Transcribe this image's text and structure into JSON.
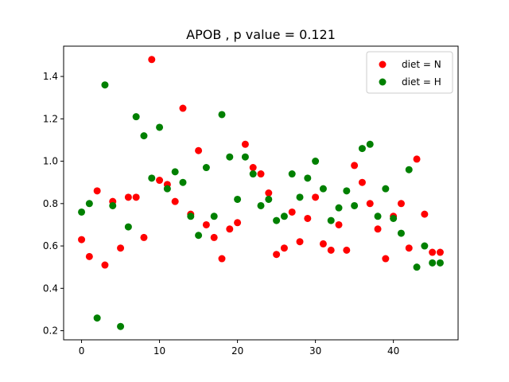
{
  "chart_data": {
    "type": "scatter",
    "title": "APOB , p value = 0.121",
    "xlabel": "",
    "ylabel": "",
    "xlim": [
      -2.3,
      48.3
    ],
    "ylim": [
      0.157,
      1.543
    ],
    "xticks": [
      0,
      10,
      20,
      30,
      40
    ],
    "yticks": [
      0.2,
      0.4,
      0.6,
      0.8,
      1.0,
      1.2,
      1.4
    ],
    "ytick_labels": [
      "0.2",
      "0.4",
      "0.6",
      "0.8",
      "1.0",
      "1.2",
      "1.4"
    ],
    "grid": false,
    "legend_position": "top-right",
    "series": [
      {
        "name": "diet = N",
        "color": "#ff0000",
        "x": [
          0,
          1,
          2,
          3,
          4,
          5,
          6,
          7,
          8,
          9,
          10,
          11,
          12,
          13,
          14,
          15,
          16,
          17,
          18,
          19,
          20,
          21,
          22,
          23,
          24,
          25,
          26,
          27,
          28,
          29,
          30,
          31,
          32,
          33,
          34,
          35,
          36,
          37,
          38,
          39,
          40,
          41,
          42,
          43,
          44,
          45,
          46
        ],
        "y": [
          0.63,
          0.55,
          0.86,
          0.51,
          0.81,
          0.59,
          0.83,
          0.83,
          0.64,
          1.48,
          0.91,
          0.89,
          0.81,
          1.25,
          0.75,
          1.05,
          0.7,
          0.64,
          0.54,
          0.68,
          0.71,
          1.08,
          0.97,
          0.94,
          0.85,
          0.56,
          0.59,
          0.76,
          0.62,
          0.73,
          0.83,
          0.61,
          0.58,
          0.7,
          0.58,
          0.98,
          0.9,
          0.8,
          0.68,
          0.54,
          0.74,
          0.8,
          0.59,
          1.01,
          0.75,
          0.57,
          0.57
        ]
      },
      {
        "name": "diet = H",
        "color": "#008000",
        "x": [
          0,
          1,
          2,
          3,
          4,
          5,
          6,
          7,
          8,
          9,
          10,
          11,
          12,
          13,
          14,
          15,
          16,
          17,
          18,
          19,
          20,
          21,
          22,
          23,
          24,
          25,
          26,
          27,
          28,
          29,
          30,
          31,
          32,
          33,
          34,
          35,
          36,
          37,
          38,
          39,
          40,
          41,
          42,
          43,
          44,
          45,
          46
        ],
        "y": [
          0.76,
          0.8,
          0.26,
          1.36,
          0.79,
          0.22,
          0.69,
          1.21,
          1.12,
          0.92,
          1.16,
          0.87,
          0.95,
          0.9,
          0.74,
          0.65,
          0.97,
          0.74,
          1.22,
          1.02,
          0.82,
          1.02,
          0.94,
          0.79,
          0.82,
          0.72,
          0.74,
          0.94,
          0.83,
          0.92,
          1.0,
          0.87,
          0.72,
          0.78,
          0.86,
          0.79,
          1.06,
          1.08,
          0.74,
          0.87,
          0.73,
          0.66,
          0.96,
          0.5,
          0.6,
          0.52,
          0.52
        ]
      }
    ]
  }
}
